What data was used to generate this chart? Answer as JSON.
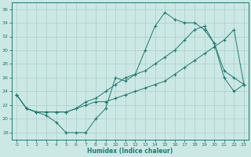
{
  "xlabel": "Humidex (Indice chaleur)",
  "xlim": [
    -0.5,
    23.5
  ],
  "ylim": [
    17,
    37
  ],
  "yticks": [
    18,
    20,
    22,
    24,
    26,
    28,
    30,
    32,
    34,
    36
  ],
  "xticks": [
    0,
    1,
    2,
    3,
    4,
    5,
    6,
    7,
    8,
    9,
    10,
    11,
    12,
    13,
    14,
    15,
    16,
    17,
    18,
    19,
    20,
    21,
    22,
    23
  ],
  "bg_color": "#cce8e5",
  "line_color": "#1a7a6e",
  "grid_color": "#aaccca",
  "line1_x": [
    0,
    1,
    2,
    3,
    4,
    5,
    6,
    7,
    8,
    9,
    10,
    11,
    12,
    13,
    14,
    15,
    16,
    17,
    18,
    19,
    20,
    21,
    22,
    23
  ],
  "line1_y": [
    23.5,
    21.5,
    21,
    20.5,
    19.5,
    18,
    18,
    18,
    20,
    21.5,
    26,
    25.5,
    26.5,
    30,
    33.5,
    35.5,
    34.5,
    34,
    34,
    33,
    31,
    26,
    24,
    25
  ],
  "line2_x": [
    0,
    1,
    2,
    3,
    4,
    5,
    6,
    7,
    8,
    9,
    10,
    11,
    12,
    13,
    14,
    15,
    16,
    17,
    18,
    19,
    20,
    21,
    22,
    23
  ],
  "line2_y": [
    23.5,
    21.5,
    21,
    21,
    21,
    21,
    21.5,
    22.5,
    23,
    24,
    25,
    26,
    26.5,
    27,
    28,
    29,
    30,
    31.5,
    33,
    33.5,
    31,
    27,
    26,
    25
  ],
  "line3_x": [
    0,
    1,
    2,
    3,
    4,
    5,
    6,
    7,
    8,
    9,
    10,
    11,
    12,
    13,
    14,
    15,
    16,
    17,
    18,
    19,
    20,
    21,
    22,
    23
  ],
  "line3_y": [
    23.5,
    21.5,
    21,
    21,
    21,
    21,
    21.5,
    22,
    22.5,
    22.5,
    23,
    23.5,
    24,
    24.5,
    25,
    25.5,
    26.5,
    27.5,
    28.5,
    29.5,
    30.5,
    31.5,
    33,
    25
  ]
}
